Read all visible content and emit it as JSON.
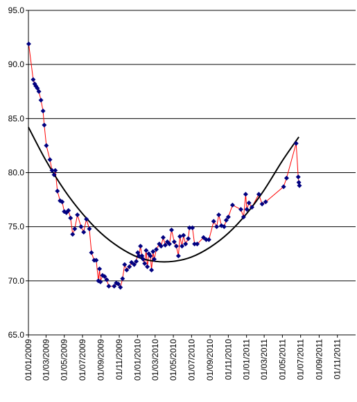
{
  "chart_data": {
    "type": "scatter",
    "xlim": [
      "01/01/2009",
      "01/01/2012"
    ],
    "xticks": [
      "01/01/2009",
      "01/03/2009",
      "01/05/2009",
      "01/07/2009",
      "01/09/2009",
      "01/11/2009",
      "01/01/2010",
      "01/03/2010",
      "01/05/2010",
      "01/07/2010",
      "01/09/2010",
      "01/11/2010",
      "01/01/2011",
      "01/03/2011",
      "01/05/2011",
      "01/07/2011",
      "01/09/2011",
      "01/11/2011"
    ],
    "ylim": [
      65,
      95
    ],
    "yticks": [
      {
        "value": 65,
        "label": "65.0"
      },
      {
        "value": 70,
        "label": "70.0"
      },
      {
        "value": 75,
        "label": "75.0"
      },
      {
        "value": 80,
        "label": "80.0"
      },
      {
        "value": 85,
        "label": "85.0"
      },
      {
        "value": 90,
        "label": "90.0"
      },
      {
        "value": 95,
        "label": "95.0"
      }
    ],
    "grid": true,
    "series": [
      {
        "color": "#000080",
        "line_color": "#ff0000",
        "x": [
          "02/01/2009",
          "17/01/2009",
          "22/01/2009",
          "26/01/2009",
          "31/01/2009",
          "05/02/2009",
          "12/02/2009",
          "19/02/2009",
          "23/02/2009",
          "02/03/2009",
          "14/03/2009",
          "21/03/2009",
          "28/03/2009",
          "01/04/2009",
          "08/04/2009",
          "17/04/2009",
          "24/04/2009",
          "01/05/2009",
          "08/05/2009",
          "15/05/2009",
          "22/05/2009",
          "29/05/2009",
          "05/06/2009",
          "14/06/2009",
          "26/06/2009",
          "05/07/2009",
          "14/07/2009",
          "24/07/2009",
          "31/07/2009",
          "09/08/2009",
          "16/08/2009",
          "23/08/2009",
          "27/08/2009",
          "30/08/2009",
          "06/09/2009",
          "13/09/2009",
          "20/09/2009",
          "27/09/2009",
          "15/10/2009",
          "22/10/2009",
          "29/10/2009",
          "05/11/2009",
          "12/11/2009",
          "19/11/2009",
          "26/11/2009",
          "05/12/2009",
          "12/12/2009",
          "21/12/2009",
          "28/12/2009",
          "02/01/2010",
          "06/01/2010",
          "11/01/2010",
          "16/01/2010",
          "20/01/2010",
          "25/01/2010",
          "30/01/2010",
          "03/02/2010",
          "08/02/2010",
          "13/02/2010",
          "17/02/2010",
          "22/02/2010",
          "26/02/2010",
          "05/03/2010",
          "15/03/2010",
          "21/03/2010",
          "28/03/2010",
          "04/04/2010",
          "11/04/2010",
          "18/04/2010",
          "25/04/2010",
          "04/05/2010",
          "11/05/2010",
          "18/05/2010",
          "23/05/2010",
          "30/05/2010",
          "04/06/2010",
          "11/06/2010",
          "20/06/2010",
          "24/06/2010",
          "04/07/2010",
          "11/07/2010",
          "20/07/2010",
          "10/08/2010",
          "19/08/2010",
          "28/08/2010",
          "13/09/2010",
          "23/09/2010",
          "30/09/2010",
          "09/10/2010",
          "18/10/2010",
          "25/10/2010",
          "01/11/2010",
          "15/11/2010",
          "13/12/2010",
          "22/12/2010",
          "29/12/2010",
          "02/01/2011",
          "09/01/2011",
          "19/01/2011",
          "11/02/2011",
          "22/02/2011",
          "06/03/2011",
          "05/05/2011",
          "15/05/2011",
          "16/06/2011",
          "23/06/2011",
          "25/06/2011",
          "27/06/2011"
        ],
        "values": [
          91.9,
          88.6,
          88.2,
          88.0,
          87.8,
          87.5,
          86.7,
          85.7,
          84.4,
          82.5,
          81.2,
          80.2,
          79.8,
          80.2,
          78.3,
          77.4,
          77.3,
          76.4,
          76.3,
          76.5,
          75.8,
          74.3,
          74.8,
          76.1,
          75.0,
          74.5,
          75.7,
          74.8,
          72.6,
          71.9,
          71.9,
          70.0,
          71.1,
          69.9,
          70.5,
          70.4,
          70.1,
          69.5,
          69.5,
          69.8,
          69.7,
          69.4,
          70.2,
          71.5,
          71.0,
          71.3,
          71.7,
          71.5,
          71.8,
          72.6,
          72.3,
          73.2,
          72.3,
          72.0,
          71.6,
          72.8,
          71.3,
          72.5,
          72.3,
          71.0,
          72.7,
          72.0,
          72.9,
          73.4,
          73.2,
          74.0,
          73.3,
          73.6,
          73.4,
          74.7,
          73.6,
          73.2,
          72.3,
          74.1,
          73.2,
          74.2,
          73.4,
          73.9,
          74.9,
          74.9,
          73.4,
          73.4,
          74.0,
          73.8,
          73.8,
          75.5,
          75.0,
          76.1,
          75.1,
          75.0,
          75.6,
          75.9,
          77.0,
          76.6,
          75.9,
          78.0,
          76.6,
          77.2,
          76.8,
          78.0,
          77.1,
          77.3,
          78.7,
          79.5,
          82.7,
          79.6,
          79.1,
          78.8
        ]
      }
    ],
    "trendline": {
      "color": "#000000",
      "x": [
        "01/01/2009",
        "01/03/2009",
        "01/05/2009",
        "01/07/2009",
        "01/09/2009",
        "01/11/2009",
        "01/01/2010",
        "01/03/2010",
        "01/05/2010",
        "01/07/2010",
        "01/09/2010",
        "01/11/2010",
        "01/01/2011",
        "01/03/2011",
        "01/05/2011",
        "25/06/2011"
      ],
      "values": [
        84.2,
        81.1,
        78.4,
        76.2,
        74.4,
        73.1,
        72.2,
        71.8,
        71.8,
        72.2,
        73.1,
        74.4,
        76.2,
        78.4,
        81.1,
        83.3
      ]
    }
  }
}
